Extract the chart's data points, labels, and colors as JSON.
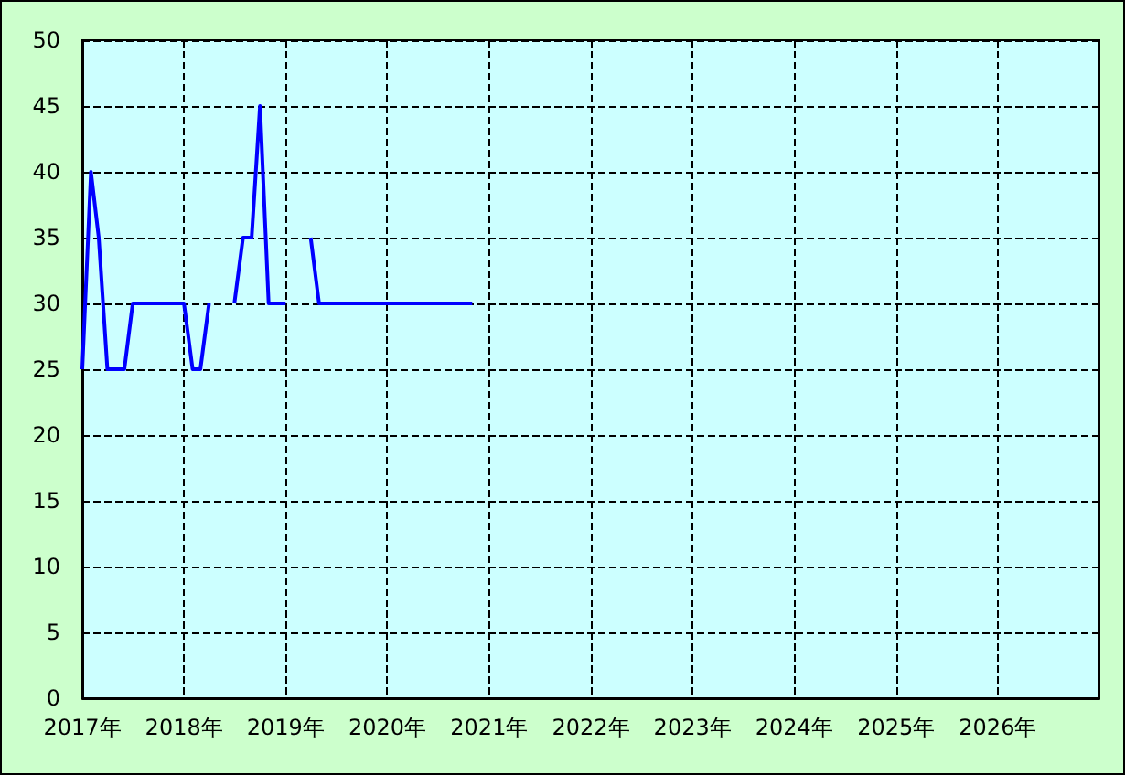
{
  "chart_data": {
    "type": "line",
    "x": [
      "2017-01",
      "2017-02",
      "2017-03",
      "2017-04",
      "2017-05",
      "2017-06",
      "2017-07",
      "2017-08",
      "2017-09",
      "2017-10",
      "2017-11",
      "2017-12",
      "2018-01",
      "2018-02",
      "2018-03",
      "2018-04",
      "2018-05",
      "2018-06",
      "2018-07",
      "2018-08",
      "2018-09",
      "2018-10",
      "2018-11",
      "2018-12",
      "2019-01",
      "2019-02",
      "2019-03",
      "2019-04",
      "2019-05",
      "2019-06",
      "2019-07",
      "2019-08",
      "2019-09",
      "2019-10",
      "2019-11",
      "2019-12",
      "2020-01",
      "2020-02",
      "2020-03",
      "2020-04",
      "2020-05",
      "2020-06",
      "2020-07",
      "2020-08",
      "2020-09",
      "2020-10",
      "2020-11"
    ],
    "series": [
      {
        "color": "#0000ff",
        "values": [
          25,
          40,
          35,
          25,
          25,
          25,
          30,
          30,
          30,
          30,
          30,
          30,
          30,
          25,
          25,
          30,
          null,
          null,
          30,
          35,
          35,
          45,
          30,
          30,
          30,
          null,
          null,
          35,
          30,
          30,
          30,
          30,
          30,
          30,
          30,
          30,
          30,
          30,
          30,
          30,
          30,
          30,
          30,
          30,
          30,
          30,
          30
        ]
      }
    ],
    "xlim": [
      "2017-01",
      "2027-01"
    ],
    "xticks": [
      {
        "value": "2017-01",
        "label": "2017年"
      },
      {
        "value": "2018-01",
        "label": "2018年"
      },
      {
        "value": "2019-01",
        "label": "2019年"
      },
      {
        "value": "2020-01",
        "label": "2020年"
      },
      {
        "value": "2021-01",
        "label": "2021年"
      },
      {
        "value": "2022-01",
        "label": "2022年"
      },
      {
        "value": "2023-01",
        "label": "2023年"
      },
      {
        "value": "2024-01",
        "label": "2024年"
      },
      {
        "value": "2025-01",
        "label": "2025年"
      },
      {
        "value": "2026-01",
        "label": "2026年"
      }
    ],
    "ylim": [
      0,
      50
    ],
    "yticks": [
      0,
      5,
      10,
      15,
      20,
      25,
      30,
      35,
      40,
      45,
      50
    ],
    "grid": true,
    "marker": "none",
    "line_style": "solid"
  }
}
